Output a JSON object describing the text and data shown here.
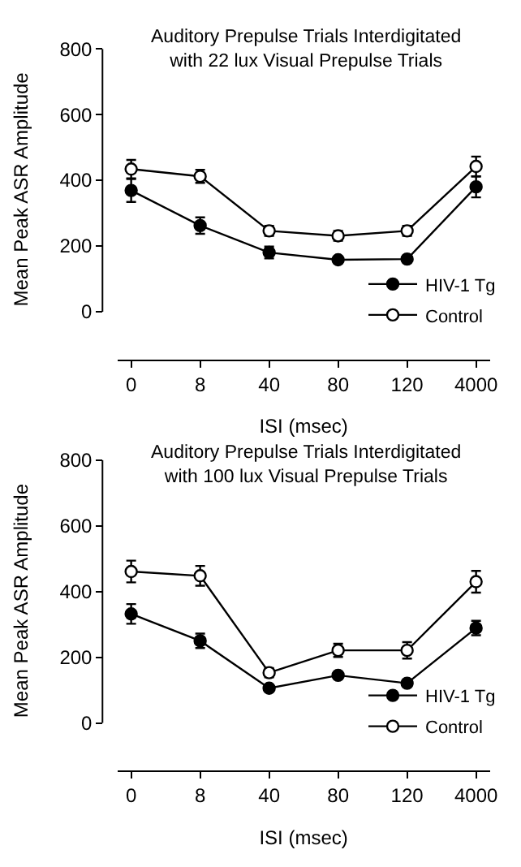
{
  "chart_data": [
    {
      "type": "line",
      "title": "Auditory Prepulse Trials Interdigitated\nwith 22 lux Visual Prepulse Trials",
      "xlabel": "ISI (msec)",
      "ylabel": "Mean Peak ASR Amplitude",
      "categories": [
        "0",
        "8",
        "40",
        "80",
        "120",
        "4000"
      ],
      "ylim": [
        0,
        800
      ],
      "yticks": [
        0,
        200,
        400,
        600,
        800
      ],
      "legend": "bottom right",
      "marker": "circle",
      "series": [
        {
          "name": "HIV-1 Tg",
          "color": "#000000",
          "values": [
            369,
            262,
            180,
            158,
            160,
            380
          ],
          "errors": [
            35,
            25,
            18,
            null,
            null,
            32
          ]
        },
        {
          "name": "Control",
          "color": "#000000",
          "values": [
            434,
            412,
            246,
            231,
            246,
            442
          ],
          "errors": [
            28,
            20,
            15,
            15,
            15,
            30
          ]
        }
      ]
    },
    {
      "type": "line",
      "title": "Auditory Prepulse Trials Interdigitated\nwith 100 lux Visual Prepulse Trials",
      "xlabel": "ISI (msec)",
      "ylabel": "Mean Peak ASR Amplitude",
      "categories": [
        "0",
        "8",
        "40",
        "80",
        "120",
        "4000"
      ],
      "ylim": [
        0,
        800
      ],
      "yticks": [
        0,
        200,
        400,
        600,
        800
      ],
      "legend": "bottom right",
      "marker": "circle",
      "series": [
        {
          "name": "HIV-1 Tg",
          "color": "#000000",
          "values": [
            332,
            250,
            106,
            145,
            121,
            289
          ],
          "errors": [
            30,
            22,
            null,
            null,
            null,
            22
          ]
        },
        {
          "name": "Control",
          "color": "#000000",
          "values": [
            461,
            448,
            153,
            221,
            221,
            430
          ],
          "errors": [
            33,
            30,
            14,
            20,
            25,
            33
          ]
        }
      ]
    }
  ]
}
